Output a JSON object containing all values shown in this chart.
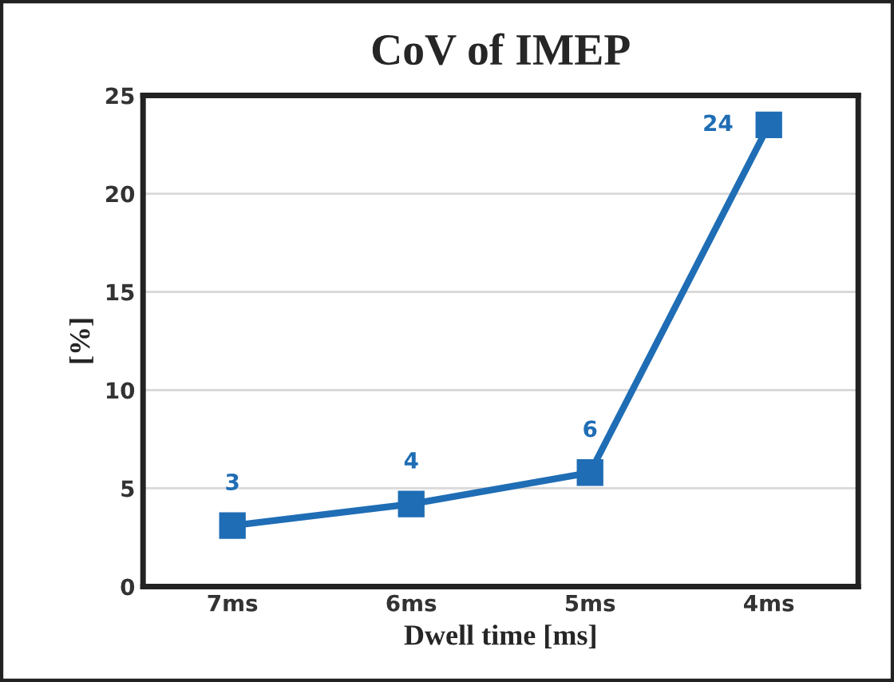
{
  "chart_data": {
    "type": "line",
    "title": "CoV of IMEP",
    "xlabel": "Dwell time [ms]",
    "ylabel": "[%]",
    "categories": [
      "7ms",
      "6ms",
      "5ms",
      "4ms"
    ],
    "series": [
      {
        "color": "#1f6db5",
        "values": [
          3.1,
          4.2,
          5.8,
          23.5
        ],
        "value_labels": [
          "3",
          "4",
          "6",
          "24"
        ]
      }
    ],
    "ylim": [
      0,
      25
    ],
    "yticks": [
      0,
      5,
      10,
      15,
      20,
      25
    ],
    "grid": "y",
    "marker": "square",
    "line_style": "solid"
  }
}
